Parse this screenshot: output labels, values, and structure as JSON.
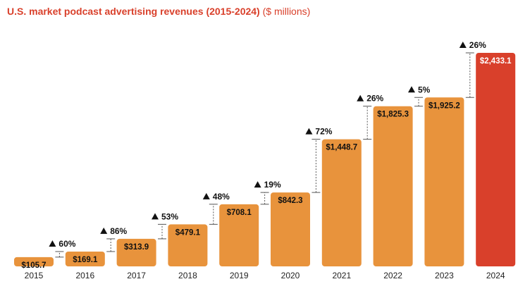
{
  "title": "U.S. market podcast advertising revenues (2015-2024)",
  "unit_note": "($ millions)",
  "colors": {
    "bar": "#e8933c",
    "highlight": "#d9402b",
    "title": "#d9402b",
    "connector": "#555555"
  },
  "chart_data": {
    "type": "bar",
    "categories": [
      "2015",
      "2016",
      "2017",
      "2018",
      "2019",
      "2020",
      "2021",
      "2022",
      "2023",
      "2024"
    ],
    "values": [
      105.7,
      169.1,
      313.9,
      479.1,
      708.1,
      842.3,
      1448.7,
      1825.3,
      1925.2,
      2433.1
    ],
    "value_labels": [
      "$105.7",
      "$169.1",
      "$313.9",
      "$479.1",
      "$708.1",
      "$842.3",
      "$1,448.7",
      "$1,825.3",
      "$1,925.2",
      "$2,433.1"
    ],
    "growth_labels": [
      "60%",
      "86%",
      "53%",
      "48%",
      "19%",
      "72%",
      "26%",
      "5%",
      "26%"
    ],
    "highlight_index": 9,
    "ylim": [
      0,
      2433.1
    ],
    "grid": false,
    "legend": "none"
  }
}
